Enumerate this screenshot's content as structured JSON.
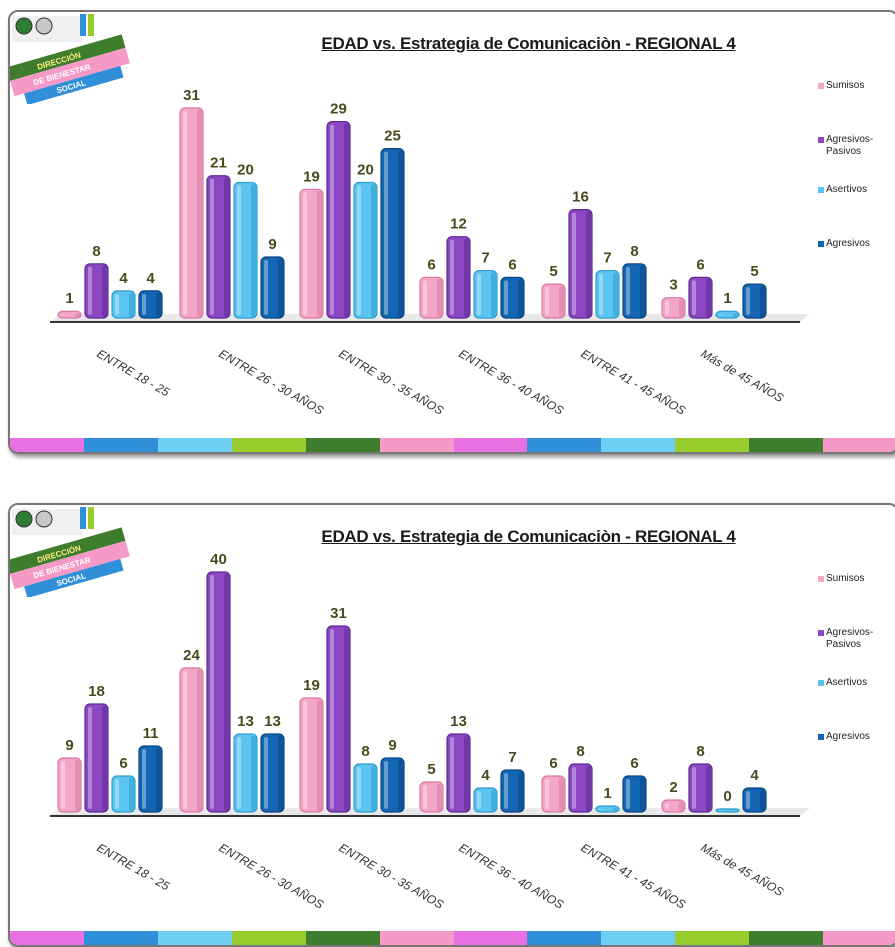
{
  "colors": {
    "sumisos": "#f4a6c8",
    "agresivos_pasivos": "#8b48c2",
    "asertivos": "#5cc4f0",
    "agresivos": "#1366b3",
    "label": "#4a4a1e",
    "stripe": [
      "#e870e0",
      "#2f8fd8",
      "#6ccff3",
      "#98cc2c",
      "#3e7d2c",
      "#f59ac6",
      "#e870e0",
      "#2f8fd8",
      "#6ccff3",
      "#98cc2c",
      "#3e7d2c",
      "#f59ac6"
    ]
  },
  "logo": {
    "lines": [
      "DIRECCIÓN",
      "DE BIENESTAR",
      "SOCIAL"
    ]
  },
  "chart_data": [
    {
      "type": "bar",
      "title": "EDAD vs.  Estrategia de Comunicaciòn - REGIONAL 4",
      "categories": [
        "ENTRE  18 - 25",
        "ENTRE 26 - 30 AÑOS",
        "ENTRE 30 - 35 AÑOS",
        "ENTRE 36 - 40 AÑOS",
        "ENTRE 41 - 45 AÑOS",
        "Más de 45 AÑOS"
      ],
      "series": [
        {
          "name": "Sumisos",
          "values": [
            1,
            31,
            19,
            6,
            5,
            3
          ]
        },
        {
          "name": "Agresivos-Pasivos",
          "values": [
            8,
            21,
            29,
            12,
            16,
            6
          ]
        },
        {
          "name": "Asertivos",
          "values": [
            4,
            20,
            20,
            7,
            7,
            1
          ]
        },
        {
          "name": "Agresivos",
          "values": [
            4,
            9,
            25,
            6,
            8,
            5
          ]
        }
      ],
      "ylim": [
        0,
        31
      ],
      "grid": false,
      "legend": "right"
    },
    {
      "type": "bar",
      "title": "EDAD vs.  Estrategia de Comunicaciòn - REGIONAL 4",
      "categories": [
        "ENTRE  18 - 25",
        "ENTRE 26 - 30 AÑOS",
        "ENTRE 30 - 35 AÑOS",
        "ENTRE 36 - 40 AÑOS",
        "ENTRE 41 - 45 AÑOS",
        "Más de 45 AÑOS"
      ],
      "series": [
        {
          "name": "Sumisos",
          "values": [
            9,
            24,
            19,
            5,
            6,
            2
          ]
        },
        {
          "name": "Agresivos-Pasivos",
          "values": [
            18,
            40,
            31,
            13,
            8,
            8
          ]
        },
        {
          "name": "Asertivos",
          "values": [
            6,
            13,
            8,
            4,
            1,
            0
          ]
        },
        {
          "name": "Agresivos",
          "values": [
            11,
            13,
            9,
            7,
            6,
            4
          ]
        }
      ],
      "ylim": [
        0,
        40
      ],
      "grid": false,
      "legend": "right"
    }
  ]
}
